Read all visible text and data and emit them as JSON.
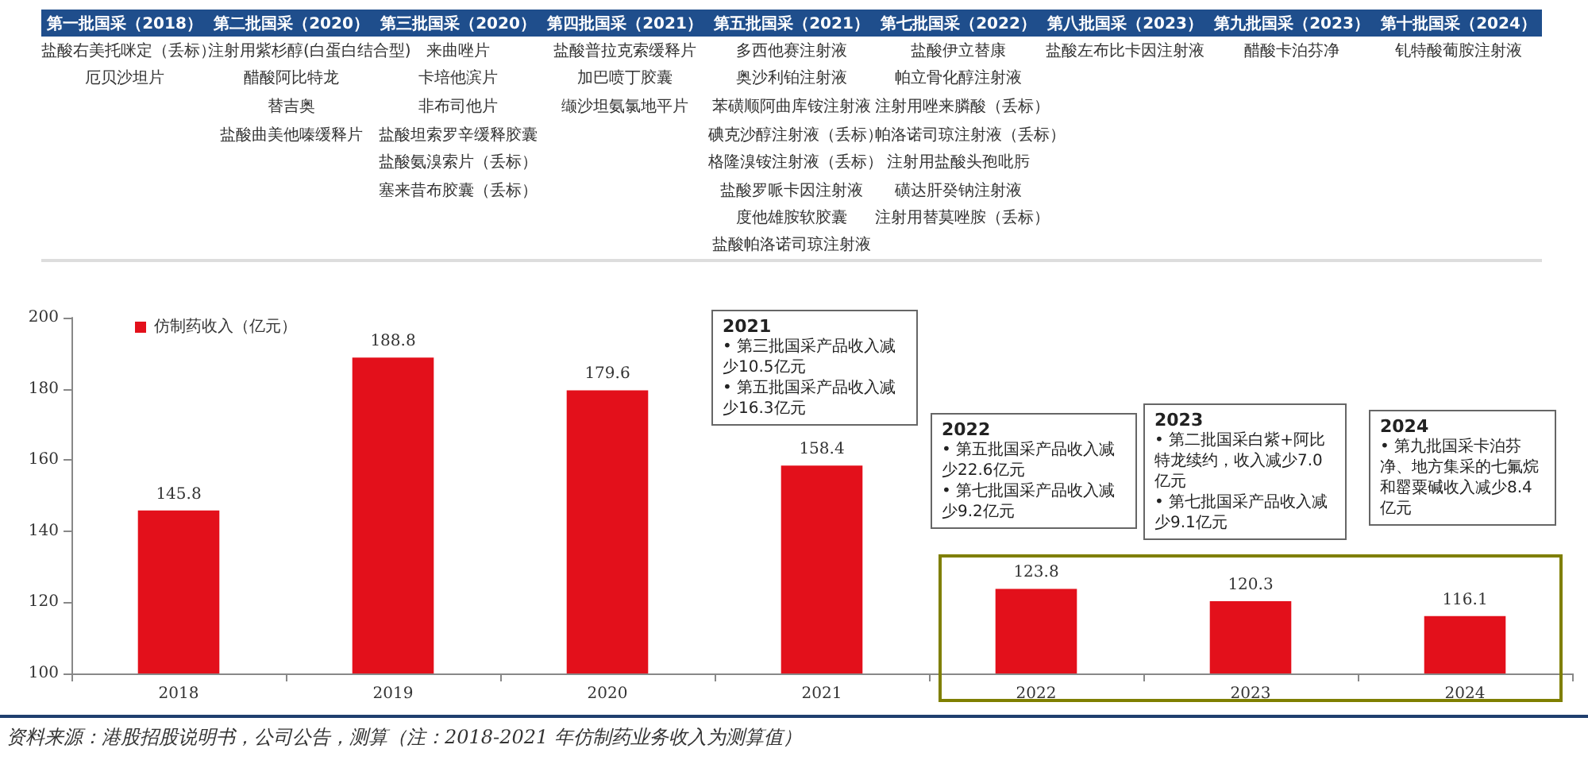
{
  "chart_data": [
    {
      "type": "other",
      "categories": [
        "第一批国采（2018）",
        "第二批国采（2020）",
        "第三批国采（2020）",
        "第四批国采（2021）",
        "第五批国采（2021）",
        "第七批国采（2022）",
        "第八批国采（2023）",
        "第九批国采（2023）",
        "第十批国采（2024）"
      ],
      "cell_labels": [
        [
          "盐酸右美托咪定（丢标）",
          "注射用紫杉醇(白蛋白结合型)",
          "来曲唑片",
          "盐酸普拉克索缓释片",
          "多西他赛注射液",
          "盐酸伊立替康",
          "盐酸左布比卡因注射液",
          "醋酸卡泊芬净",
          "钆特酸葡胺注射液"
        ],
        [
          "厄贝沙坦片",
          "醋酸阿比特龙",
          "卡培他滨片",
          "加巴喷丁胶囊",
          "奥沙利铂注射液",
          "帕立骨化醇注射液",
          null,
          null,
          null
        ],
        [
          null,
          "替吉奥",
          "非布司他片",
          "缬沙坦氨氯地平片",
          "苯磺顺阿曲库铵注射液",
          "注射用唑来膦酸（丢标）",
          null,
          null,
          null
        ],
        [
          null,
          "盐酸曲美他嗪缓释片",
          "盐酸坦索罗辛缓释胶囊",
          null,
          "碘克沙醇注射液（丢标）",
          "帕洛诺司琼注射液（丢标）",
          null,
          null,
          null
        ],
        [
          null,
          null,
          "盐酸氨溴索片（丢标）",
          null,
          "格隆溴铵注射液（丢标）",
          "注射用盐酸头孢吡肟",
          null,
          null,
          null
        ],
        [
          null,
          null,
          "塞来昔布胶囊（丢标）",
          null,
          "盐酸罗哌卡因注射液",
          "磺达肝癸钠注射液",
          null,
          null,
          null
        ],
        [
          null,
          null,
          null,
          null,
          "度他雄胺软胶囊",
          "注射用替莫唑胺（丢标）",
          null,
          null,
          null
        ],
        [
          null,
          null,
          null,
          null,
          "盐酸帕洛诺司琼注射液",
          null,
          null,
          null,
          null
        ]
      ]
    },
    {
      "type": "bar",
      "categories": [
        "2018",
        "2019",
        "2020",
        "2021",
        "2022",
        "2023",
        "2024"
      ],
      "series": [
        {
          "name": "仿制药收入（亿元）",
          "color": "#e3101b",
          "values": [
            145.8,
            188.8,
            179.6,
            158.4,
            123.8,
            120.3,
            116.1
          ]
        }
      ],
      "ylim": [
        100,
        200
      ],
      "yticks": [
        100,
        120,
        140,
        160,
        180,
        200
      ],
      "data_labels": true,
      "grid": false,
      "legend": "top left",
      "annotations": [
        "2021\n• 第三批国采产品收入减少10.5亿元\n• 第五批国采产品收入减少16.3亿元",
        "2022\n• 第五批国采产品收入减少22.6亿元\n• 第七批国采产品收入减少9.2亿元",
        "2023\n• 第二批国采白紫+阿比特龙续约，收入减少7.0亿元\n• 第七批国采产品收入减少9.1亿元",
        "2024\n• 第九批国采卡泊芬净、地方集采的七氟烷和罂粟碱收入减少8.4亿元",
        "资料来源：港股招股说明书，公司公告，测算（注：2018-2021 年仿制药业务收入为测算值）"
      ]
    }
  ]
}
